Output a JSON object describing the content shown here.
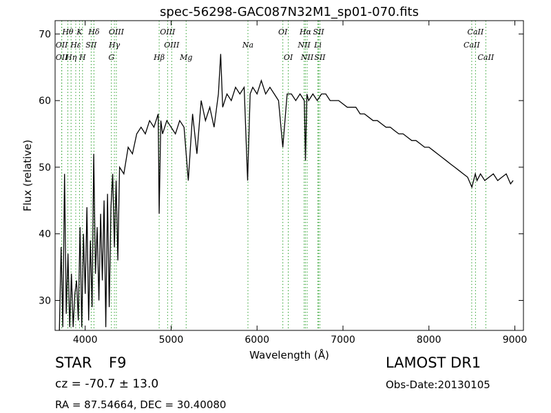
{
  "chart_data": {
    "type": "line",
    "title": "spec-56298-GAC087N32M1_sp01-070.fits",
    "xlabel": "Wavelength (Å)",
    "ylabel": "Flux (relative)",
    "xlim": [
      3650,
      9100
    ],
    "ylim": [
      25.5,
      72
    ],
    "xticks": [
      4000,
      5000,
      6000,
      7000,
      8000,
      9000
    ],
    "yticks": [
      30,
      40,
      50,
      60,
      70
    ],
    "grid": false,
    "line_color": "#000000",
    "marker_color": "#2ca02c",
    "series": [
      {
        "x": [
          3700,
          3720,
          3740,
          3760,
          3780,
          3800,
          3820,
          3840,
          3860,
          3880,
          3900,
          3920,
          3940,
          3960,
          3980,
          4000,
          4020,
          4040,
          4060,
          4080,
          4100,
          4120,
          4140,
          4160,
          4180,
          4200,
          4220,
          4240,
          4260,
          4280,
          4300,
          4320,
          4340,
          4360,
          4380,
          4400,
          4450,
          4500,
          4550,
          4600,
          4650,
          4700,
          4750,
          4800,
          4850,
          4861,
          4880,
          4900,
          4950,
          5000,
          5050,
          5100,
          5150,
          5200,
          5250,
          5300,
          5350,
          5400,
          5450,
          5500,
          5550,
          5577,
          5600,
          5650,
          5700,
          5750,
          5800,
          5850,
          5890,
          5920,
          5950,
          6000,
          6050,
          6100,
          6150,
          6200,
          6250,
          6300,
          6350,
          6400,
          6450,
          6500,
          6550,
          6563,
          6580,
          6600,
          6650,
          6700,
          6750,
          6800,
          6850,
          6900,
          6950,
          7000,
          7050,
          7100,
          7150,
          7200,
          7250,
          7300,
          7350,
          7400,
          7450,
          7500,
          7550,
          7600,
          7650,
          7700,
          7750,
          7800,
          7850,
          7900,
          7950,
          8000,
          8050,
          8100,
          8150,
          8200,
          8250,
          8300,
          8350,
          8400,
          8450,
          8500,
          8540,
          8560,
          8600,
          8650,
          8700,
          8750,
          8800,
          8850,
          8900,
          8950,
          8980
        ],
        "y": [
          25.5,
          38,
          26,
          49,
          28,
          37,
          26,
          34,
          26,
          31,
          33,
          27,
          41,
          26,
          40,
          31,
          44,
          27,
          39,
          29,
          52,
          34,
          41,
          30,
          43,
          33,
          45,
          26,
          46,
          29,
          44,
          49,
          38,
          48,
          36,
          50,
          49,
          53,
          52,
          55,
          56,
          55,
          57,
          56,
          58,
          43,
          57,
          55,
          57,
          56,
          55,
          57,
          56,
          48,
          58,
          52,
          60,
          57,
          59,
          56,
          61,
          67,
          59,
          61,
          60,
          62,
          61,
          62,
          48,
          61,
          62,
          61,
          63,
          61,
          62,
          61,
          60,
          53,
          61,
          61,
          60,
          61,
          60,
          51,
          61,
          60,
          61,
          60,
          61,
          61,
          60,
          60,
          60,
          59.5,
          59,
          59,
          59,
          58,
          58,
          57.5,
          57,
          57,
          56.5,
          56,
          56,
          55.5,
          55,
          55,
          54.5,
          54,
          54,
          53.5,
          53,
          53,
          52.5,
          52,
          51.5,
          51,
          50.5,
          50,
          49.5,
          49,
          48.5,
          47,
          49,
          48,
          49,
          48,
          48.5,
          49,
          48,
          48.5,
          49,
          47.5,
          48
        ]
      }
    ],
    "lines": [
      {
        "label": "Hθ",
        "wl": 3798,
        "row": 0
      },
      {
        "label": "OII",
        "wl": 3727,
        "row": 1
      },
      {
        "label": "OII",
        "wl": 3727,
        "row": 2
      },
      {
        "label": "Hη",
        "wl": 3836,
        "row": 2
      },
      {
        "label": "K",
        "wl": 3934,
        "row": 0
      },
      {
        "label": "Hε",
        "wl": 3890,
        "row": 1
      },
      {
        "label": "SII",
        "wl": 4070,
        "row": 1
      },
      {
        "label": "H",
        "wl": 3969,
        "row": 2
      },
      {
        "label": "Hδ",
        "wl": 4102,
        "row": 0
      },
      {
        "label": "OIII",
        "wl": 4363,
        "row": 0
      },
      {
        "label": "Hγ",
        "wl": 4340,
        "row": 1
      },
      {
        "label": "G",
        "wl": 4305,
        "row": 2
      },
      {
        "label": "OIII",
        "wl": 4959,
        "row": 0
      },
      {
        "label": "OIII",
        "wl": 5007,
        "row": 1
      },
      {
        "label": "Hβ",
        "wl": 4861,
        "row": 2
      },
      {
        "label": "Mg",
        "wl": 5175,
        "row": 2
      },
      {
        "label": "Na",
        "wl": 5894,
        "row": 1
      },
      {
        "label": "OI",
        "wl": 6300,
        "row": 0
      },
      {
        "label": "OI",
        "wl": 6363,
        "row": 2
      },
      {
        "label": "Hα",
        "wl": 6563,
        "row": 0
      },
      {
        "label": "SII",
        "wl": 6716,
        "row": 0
      },
      {
        "label": "NII",
        "wl": 6548,
        "row": 1
      },
      {
        "label": "Li",
        "wl": 6708,
        "row": 1
      },
      {
        "label": "NII",
        "wl": 6583,
        "row": 2
      },
      {
        "label": "SII",
        "wl": 6731,
        "row": 2
      },
      {
        "label": "CaII",
        "wl": 8542,
        "row": 0
      },
      {
        "label": "CaII",
        "wl": 8498,
        "row": 1
      },
      {
        "label": "CaII",
        "wl": 8662,
        "row": 2
      }
    ]
  },
  "info": {
    "class_label": "STAR",
    "subclass": "F9",
    "cz": "cz = -70.7 ± 13.0",
    "coords": "RA = 87.54664, DEC = 30.40080",
    "survey": "LAMOST DR1",
    "obs_date": "Obs-Date:20130105"
  }
}
